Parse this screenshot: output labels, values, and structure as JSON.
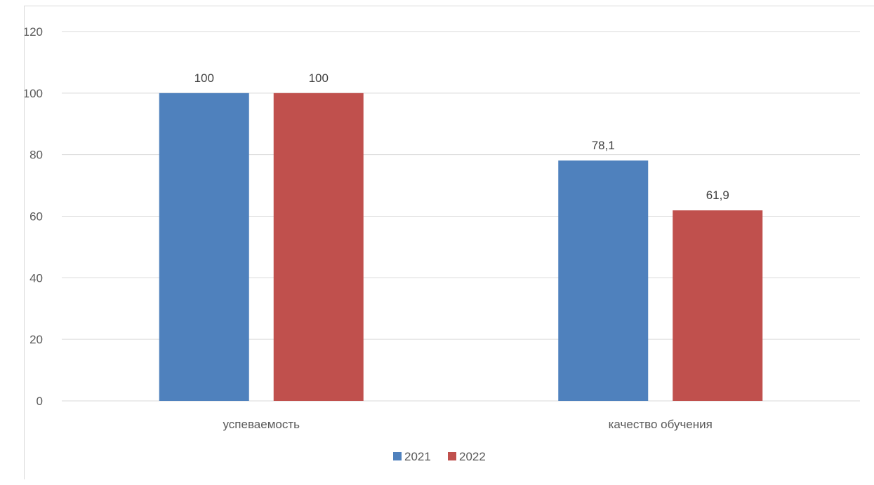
{
  "chart_data": {
    "type": "bar",
    "categories": [
      "успеваемость",
      "качество обучения"
    ],
    "series": [
      {
        "name": "2021",
        "values": [
          100,
          78.1
        ],
        "labels": [
          "100",
          "78,1"
        ],
        "color": "#4F81BD"
      },
      {
        "name": "2022",
        "values": [
          100,
          61.9
        ],
        "labels": [
          "100",
          "61,9"
        ],
        "color": "#C0504D"
      }
    ],
    "ylim": [
      0,
      120
    ],
    "yticks": [
      0,
      20,
      40,
      60,
      80,
      100,
      120
    ],
    "grid": true,
    "legend_position": "bottom"
  }
}
